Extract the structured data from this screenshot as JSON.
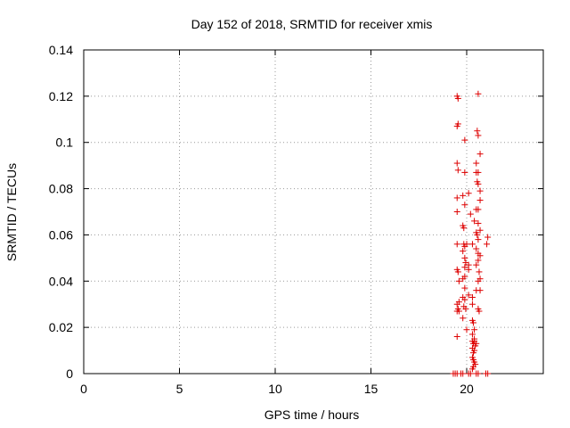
{
  "chart_data": {
    "type": "scatter",
    "title": "Day 152 of 2018, SRMTID for receiver xmis",
    "xlabel": "GPS time / hours",
    "ylabel": "SRMTID / TECUs",
    "xlim": [
      0,
      24
    ],
    "ylim": [
      0,
      0.14
    ],
    "x_ticks": [
      0,
      5,
      10,
      15,
      20
    ],
    "y_ticks": [
      0,
      0.02,
      0.04,
      0.06,
      0.08,
      0.1,
      0.12,
      0.14
    ],
    "x_tick_labels": [
      "0",
      "5",
      "10",
      "15",
      "20"
    ],
    "y_tick_labels": [
      "0",
      "0.02",
      "0.04",
      "0.06",
      "0.08",
      "0.1",
      "0.12",
      "0.14"
    ],
    "grid": true,
    "grid_style": "dotted",
    "marker": "+",
    "series": [
      {
        "color": "#dd0000",
        "points": [
          [
            19.3,
            0
          ],
          [
            19.4,
            0
          ],
          [
            19.5,
            0
          ],
          [
            19.7,
            0
          ],
          [
            19.8,
            0
          ],
          [
            20.1,
            0
          ],
          [
            20.2,
            0
          ],
          [
            20.5,
            0
          ],
          [
            20.6,
            0
          ],
          [
            21.0,
            0
          ],
          [
            21.1,
            0
          ],
          [
            19.5,
            0.12
          ],
          [
            19.55,
            0.119
          ],
          [
            20.6,
            0.121
          ],
          [
            19.5,
            0.107
          ],
          [
            19.55,
            0.108
          ],
          [
            20.55,
            0.105
          ],
          [
            20.6,
            0.103
          ],
          [
            19.9,
            0.101
          ],
          [
            19.5,
            0.091
          ],
          [
            19.55,
            0.088
          ],
          [
            20.7,
            0.095
          ],
          [
            20.5,
            0.091
          ],
          [
            19.9,
            0.087
          ],
          [
            20.5,
            0.087
          ],
          [
            20.6,
            0.087
          ],
          [
            20.55,
            0.083
          ],
          [
            20.6,
            0.082
          ],
          [
            20.7,
            0.079
          ],
          [
            19.5,
            0.076
          ],
          [
            19.8,
            0.077
          ],
          [
            20.1,
            0.078
          ],
          [
            20.7,
            0.075
          ],
          [
            19.9,
            0.073
          ],
          [
            19.5,
            0.07
          ],
          [
            20.2,
            0.069
          ],
          [
            20.5,
            0.071
          ],
          [
            20.6,
            0.071
          ],
          [
            20.4,
            0.066
          ],
          [
            19.8,
            0.064
          ],
          [
            19.85,
            0.063
          ],
          [
            20.6,
            0.065
          ],
          [
            20.7,
            0.062
          ],
          [
            20.5,
            0.061
          ],
          [
            20.55,
            0.06
          ],
          [
            20.6,
            0.058
          ],
          [
            21.1,
            0.059
          ],
          [
            21.05,
            0.056
          ],
          [
            19.5,
            0.056
          ],
          [
            19.85,
            0.056
          ],
          [
            19.9,
            0.055
          ],
          [
            20.0,
            0.056
          ],
          [
            20.3,
            0.056
          ],
          [
            20.5,
            0.054
          ],
          [
            20.6,
            0.052
          ],
          [
            20.7,
            0.051
          ],
          [
            19.8,
            0.053
          ],
          [
            19.9,
            0.05
          ],
          [
            19.95,
            0.048
          ],
          [
            20.1,
            0.047
          ],
          [
            20.5,
            0.047
          ],
          [
            20.6,
            0.049
          ],
          [
            19.5,
            0.045
          ],
          [
            19.55,
            0.044
          ],
          [
            19.9,
            0.046
          ],
          [
            20.1,
            0.045
          ],
          [
            20.65,
            0.044
          ],
          [
            19.6,
            0.04
          ],
          [
            19.8,
            0.041
          ],
          [
            19.9,
            0.042
          ],
          [
            20.6,
            0.04
          ],
          [
            20.7,
            0.041
          ],
          [
            19.9,
            0.037
          ],
          [
            20.5,
            0.036
          ],
          [
            20.7,
            0.036
          ],
          [
            20.1,
            0.034
          ],
          [
            20.3,
            0.033
          ],
          [
            19.8,
            0.033
          ],
          [
            19.9,
            0.032
          ],
          [
            19.6,
            0.031
          ],
          [
            19.5,
            0.03
          ],
          [
            19.55,
            0.028
          ],
          [
            19.85,
            0.029
          ],
          [
            19.95,
            0.028
          ],
          [
            20.3,
            0.03
          ],
          [
            20.6,
            0.028
          ],
          [
            20.65,
            0.027
          ],
          [
            19.6,
            0.027
          ],
          [
            19.5,
            0.027
          ],
          [
            19.8,
            0.024
          ],
          [
            20.3,
            0.023
          ],
          [
            20.35,
            0.022
          ],
          [
            20.0,
            0.019
          ],
          [
            20.4,
            0.019
          ],
          [
            20.3,
            0.017
          ],
          [
            19.5,
            0.016
          ],
          [
            20.3,
            0.014
          ],
          [
            20.35,
            0.013
          ],
          [
            20.4,
            0.014
          ],
          [
            20.45,
            0.012
          ],
          [
            20.3,
            0.011
          ],
          [
            20.4,
            0.01
          ],
          [
            20.35,
            0.009
          ],
          [
            20.3,
            0.007
          ],
          [
            20.35,
            0.006
          ],
          [
            20.4,
            0.005
          ],
          [
            20.45,
            0.004
          ],
          [
            20.35,
            0.003
          ],
          [
            20.3,
            0.002
          ],
          [
            20.4,
            0.015
          ],
          [
            20.5,
            0.013
          ]
        ]
      }
    ]
  }
}
